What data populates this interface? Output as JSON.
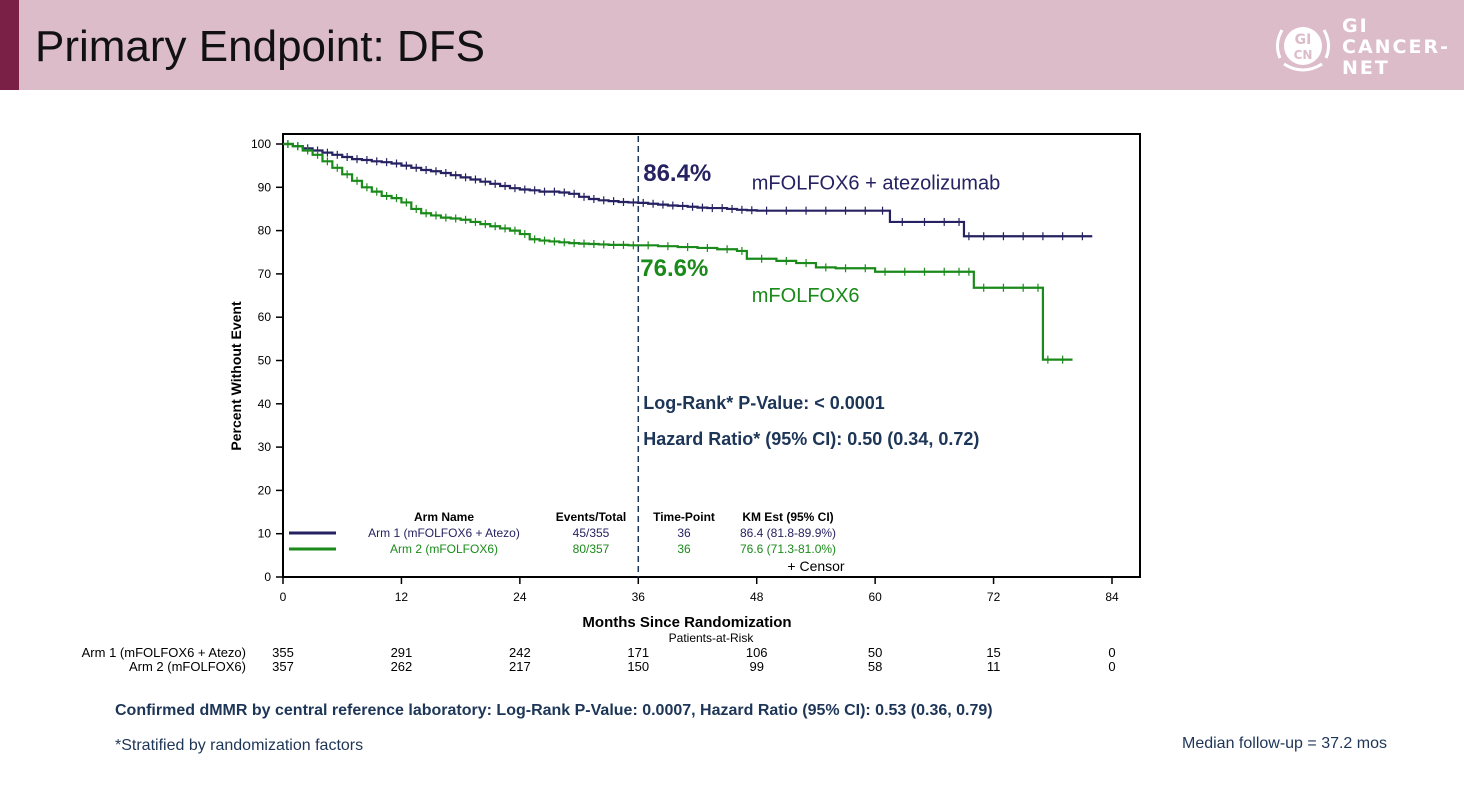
{
  "slide": {
    "title": "Primary Endpoint: DFS",
    "logo": {
      "text_lines": [
        "GI",
        "CANCER-",
        "NET"
      ],
      "badge": "GI CN"
    }
  },
  "chart_data": {
    "type": "line",
    "subtype": "kaplan-meier",
    "xlabel": "Months Since Randomization",
    "ylabel": "Percent Without Event",
    "xlim": [
      0,
      84
    ],
    "ylim": [
      0,
      100
    ],
    "x_ticks": [
      0,
      12,
      24,
      36,
      48,
      60,
      72,
      84
    ],
    "y_ticks": [
      0,
      10,
      20,
      30,
      40,
      50,
      60,
      70,
      80,
      90,
      100
    ],
    "grid": false,
    "reference_line_x": 36,
    "series": [
      {
        "name": "mFOLFOX6 + atezolizumab",
        "color": "#262262",
        "x": [
          0,
          1,
          2,
          3,
          4,
          5,
          6,
          7,
          8,
          9,
          10,
          11,
          12,
          13,
          14,
          15,
          16,
          17,
          18,
          19,
          20,
          21,
          22,
          23,
          24,
          25,
          26,
          27,
          28,
          29,
          30,
          31,
          32,
          33,
          34,
          35,
          36,
          37,
          38,
          39,
          40,
          41,
          42,
          43,
          44,
          45,
          46,
          47,
          48,
          50,
          52,
          54,
          56,
          58,
          60,
          61.5,
          64,
          66,
          68,
          69,
          70,
          72,
          74,
          76,
          78,
          80,
          82
        ],
        "y": [
          100,
          99.5,
          99,
          98.5,
          98,
          97.5,
          97,
          96.5,
          96.3,
          96,
          95.8,
          95.5,
          95,
          94.5,
          94,
          93.7,
          93.3,
          92.8,
          92.3,
          91.8,
          91.3,
          90.8,
          90.3,
          89.8,
          89.5,
          89.3,
          89,
          89,
          88.8,
          88.5,
          87.8,
          87.3,
          87,
          86.8,
          86.6,
          86.5,
          86.4,
          86.2,
          86,
          85.8,
          85.7,
          85.5,
          85.3,
          85.2,
          85.2,
          85,
          84.8,
          84.7,
          84.6,
          84.6,
          84.6,
          84.6,
          84.6,
          84.6,
          84.6,
          82,
          82,
          82,
          82,
          78.7,
          78.7,
          78.7,
          78.7,
          78.7,
          78.7,
          78.7,
          78.7
        ]
      },
      {
        "name": "mFOLFOX6",
        "color": "#1a8a1a",
        "x": [
          0,
          1,
          2,
          3,
          4,
          5,
          6,
          7,
          8,
          9,
          10,
          11,
          12,
          13,
          14,
          15,
          16,
          17,
          18,
          19,
          20,
          21,
          22,
          23,
          24,
          25,
          26,
          27,
          28,
          29,
          30,
          31,
          32,
          33,
          34,
          35,
          36,
          38,
          40,
          42,
          44,
          46,
          47,
          50,
          52,
          54,
          56,
          58,
          60,
          62,
          64,
          66,
          68,
          69,
          70,
          72,
          74,
          76,
          77,
          78,
          80
        ],
        "y": [
          100,
          99.5,
          98.5,
          97.5,
          96,
          94.5,
          93,
          91.5,
          90,
          89,
          88,
          87.5,
          86.5,
          85,
          84,
          83.5,
          83,
          82.8,
          82.5,
          82,
          81.5,
          81,
          80.5,
          80,
          79.2,
          78,
          77.7,
          77.5,
          77.3,
          77.1,
          77,
          76.9,
          76.8,
          76.7,
          76.7,
          76.6,
          76.6,
          76.4,
          76.2,
          76,
          75.7,
          75.3,
          73.5,
          73,
          72.5,
          71.5,
          71.3,
          71.3,
          70.5,
          70.5,
          70.5,
          70.5,
          70.5,
          70.5,
          66.8,
          66.8,
          66.8,
          66.8,
          50.2,
          50.2,
          50.2
        ]
      }
    ],
    "annotations": [
      {
        "text": "86.4%",
        "x": 36.5,
        "y": 91.5,
        "color": "#262262"
      },
      {
        "text": "76.6%",
        "x": 36.2,
        "y": 69.5,
        "color": "#1a8a1a"
      },
      {
        "text": "mFOLFOX6 + atezolizumab",
        "x": 47.5,
        "y": 89.5,
        "color": "#262262"
      },
      {
        "text": "mFOLFOX6",
        "x": 47.5,
        "y": 63.5,
        "color": "#1a8a1a"
      },
      {
        "text": "Log-Rank* P-Value: < 0.0001",
        "x": 36.5,
        "y": 38.8,
        "color": "#1d3557"
      },
      {
        "text": "Hazard Ratio* (95% CI): 0.50 (0.34, 0.72)",
        "x": 36.5,
        "y": 30.5,
        "color": "#1d3557"
      }
    ],
    "legend_table": {
      "headers": [
        "Arm Name",
        "Events/Total",
        "Time-Point",
        "KM Est (95% CI)"
      ],
      "rows": [
        {
          "arm": "Arm 1 (mFOLFOX6 + Atezo)",
          "events": "45/355",
          "timepoint": "36",
          "km": "86.4 (81.8-89.9%)",
          "color": "#262262"
        },
        {
          "arm": "Arm 2 (mFOLFOX6)",
          "events": "80/357",
          "timepoint": "36",
          "km": "76.6 (71.3-81.0%)",
          "color": "#1a8a1a"
        }
      ],
      "censor_note": "+ Censor"
    },
    "patients_at_risk": {
      "title": "Patients-at-Risk",
      "times": [
        0,
        12,
        24,
        36,
        48,
        60,
        72,
        84
      ],
      "rows": [
        {
          "label": "Arm 1 (mFOLFOX6 + Atezo)",
          "values": [
            "355",
            "291",
            "242",
            "171",
            "106",
            "50",
            "15",
            "0"
          ]
        },
        {
          "label": "Arm 2 (mFOLFOX6)",
          "values": [
            "357",
            "262",
            "217",
            "150",
            "99",
            "58",
            "11",
            "0"
          ]
        }
      ]
    }
  },
  "footnotes": {
    "main": "Confirmed dMMR by central reference laboratory: Log-Rank P-Value: 0.0007, Hazard Ratio (95% CI): 0.53 (0.36, 0.79)",
    "stratified": "*Stratified by randomization factors",
    "followup": "Median follow-up = 37.2 mos"
  }
}
